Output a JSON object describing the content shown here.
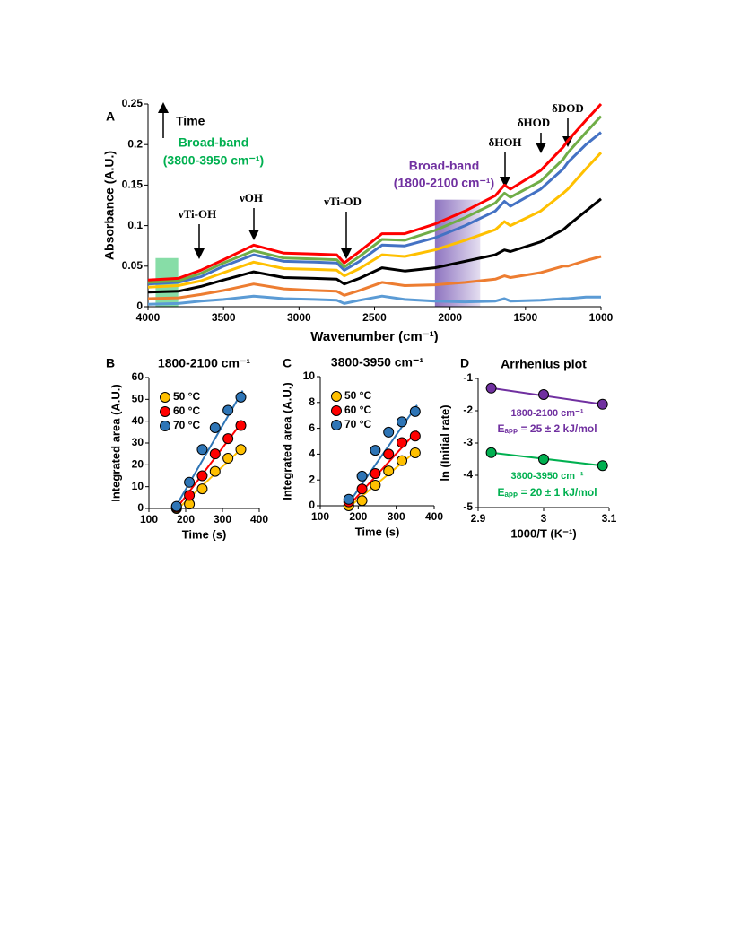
{
  "chart_data": [
    {
      "type": "line",
      "panel_label": "A",
      "xlabel": "Wavenumber (cm⁻¹)",
      "ylabel": "Absorbance (A.U.)",
      "xlim": [
        4000,
        1000
      ],
      "ylim": [
        0,
        0.25
      ],
      "xticks": [
        4000,
        3500,
        3000,
        2500,
        2000,
        1500,
        1000
      ],
      "yticks": [
        0,
        0.05,
        0.1,
        0.15,
        0.2,
        0.25
      ],
      "x": [
        4000,
        3800,
        3650,
        3500,
        3300,
        3100,
        2900,
        2750,
        2700,
        2600,
        2450,
        2300,
        2100,
        1900,
        1700,
        1640,
        1600,
        1400,
        1250,
        1220,
        1100,
        1000
      ],
      "series": [
        {
          "color": "#5b9bd5",
          "values": [
            0.003,
            0.004,
            0.007,
            0.009,
            0.013,
            0.01,
            0.009,
            0.008,
            0.004,
            0.008,
            0.013,
            0.009,
            0.007,
            0.006,
            0.007,
            0.01,
            0.007,
            0.008,
            0.01,
            0.01,
            0.012,
            0.012
          ]
        },
        {
          "color": "#ed7d31",
          "values": [
            0.01,
            0.011,
            0.015,
            0.02,
            0.028,
            0.022,
            0.02,
            0.019,
            0.014,
            0.02,
            0.03,
            0.026,
            0.027,
            0.03,
            0.034,
            0.038,
            0.036,
            0.042,
            0.05,
            0.05,
            0.057,
            0.062
          ]
        },
        {
          "color": "#000000",
          "values": [
            0.018,
            0.019,
            0.025,
            0.033,
            0.043,
            0.036,
            0.035,
            0.034,
            0.028,
            0.035,
            0.048,
            0.044,
            0.048,
            0.056,
            0.064,
            0.07,
            0.068,
            0.08,
            0.095,
            0.1,
            0.118,
            0.133
          ]
        },
        {
          "color": "#ffc000",
          "values": [
            0.024,
            0.026,
            0.032,
            0.042,
            0.055,
            0.047,
            0.046,
            0.045,
            0.038,
            0.047,
            0.064,
            0.062,
            0.07,
            0.082,
            0.095,
            0.105,
            0.1,
            0.118,
            0.14,
            0.145,
            0.17,
            0.19
          ]
        },
        {
          "color": "#4472c4",
          "values": [
            0.028,
            0.03,
            0.037,
            0.05,
            0.064,
            0.056,
            0.055,
            0.054,
            0.045,
            0.056,
            0.076,
            0.075,
            0.085,
            0.1,
            0.118,
            0.13,
            0.124,
            0.145,
            0.17,
            0.178,
            0.2,
            0.215
          ]
        },
        {
          "color": "#70ad47",
          "values": [
            0.03,
            0.032,
            0.041,
            0.054,
            0.069,
            0.06,
            0.059,
            0.058,
            0.049,
            0.062,
            0.083,
            0.082,
            0.094,
            0.11,
            0.128,
            0.14,
            0.135,
            0.155,
            0.182,
            0.19,
            0.215,
            0.235
          ]
        },
        {
          "color": "#ff0000",
          "values": [
            0.033,
            0.035,
            0.045,
            0.058,
            0.076,
            0.066,
            0.065,
            0.064,
            0.054,
            0.068,
            0.09,
            0.09,
            0.102,
            0.118,
            0.137,
            0.15,
            0.145,
            0.168,
            0.197,
            0.205,
            0.23,
            0.25
          ]
        }
      ],
      "bands": [
        {
          "x": [
            3950,
            3800
          ],
          "top": 0.06,
          "color": "#5fd28a"
        },
        {
          "x": [
            2100,
            1800
          ],
          "top": 0.132,
          "color": "#8e6fc0"
        }
      ],
      "annotations": [
        {
          "text": "Time",
          "color": "#000000"
        },
        {
          "text": "Broad-band",
          "color": "#00b050"
        },
        {
          "text": "(3800-3950 cm⁻¹)",
          "color": "#00b050"
        },
        {
          "text": "Broad-band",
          "color": "#7030a0"
        },
        {
          "text": "(1800-2100 cm⁻¹)",
          "color": "#7030a0"
        },
        {
          "text": "νTi-OH",
          "color": "#000000"
        },
        {
          "text": "νOH",
          "color": "#000000"
        },
        {
          "text": "νTi-OD",
          "color": "#000000"
        },
        {
          "text": "δHOH",
          "color": "#000000"
        },
        {
          "text": "δHOD",
          "color": "#000000"
        },
        {
          "text": "δDOD",
          "color": "#000000"
        }
      ]
    },
    {
      "type": "scatter",
      "panel_label": "B",
      "title": "1800-2100 cm⁻¹",
      "xlabel": "Time (s)",
      "ylabel": "Integrated  area (A.U.)",
      "xlim": [
        100,
        400
      ],
      "ylim": [
        0,
        60
      ],
      "xticks": [
        100,
        200,
        300,
        400
      ],
      "yticks": [
        0,
        10,
        20,
        30,
        40,
        50,
        60
      ],
      "legend": "top-left",
      "x": [
        175,
        210,
        245,
        280,
        315,
        350
      ],
      "series": [
        {
          "name": "50 °C",
          "color": "#ffc000",
          "values": [
            0,
            2,
            9,
            17,
            23,
            27
          ],
          "fit": {
            "x": [
              180,
              355
            ],
            "y": [
              0,
              28
            ]
          }
        },
        {
          "name": "60 °C",
          "color": "#ff0000",
          "values": [
            0.5,
            6,
            15,
            25,
            32,
            38
          ],
          "fit": {
            "x": [
              175,
              355
            ],
            "y": [
              0,
              40
            ]
          }
        },
        {
          "name": "70 °C",
          "color": "#2e75b6",
          "values": [
            1,
            12,
            27,
            37,
            45,
            51
          ],
          "fit": {
            "x": [
              170,
              355
            ],
            "y": [
              0,
              54
            ]
          }
        }
      ]
    },
    {
      "type": "scatter",
      "panel_label": "C",
      "title": "3800-3950 cm⁻¹",
      "xlabel": "Time (s)",
      "ylabel": "Integrated  area (A.U.)",
      "xlim": [
        100,
        400
      ],
      "ylim": [
        0,
        10
      ],
      "xticks": [
        100,
        200,
        300,
        400
      ],
      "yticks": [
        0,
        2,
        4,
        6,
        8,
        10
      ],
      "legend": "top-left",
      "x": [
        175,
        210,
        245,
        280,
        315,
        350
      ],
      "series": [
        {
          "name": "50 °C",
          "color": "#ffc000",
          "values": [
            0,
            0.4,
            1.6,
            2.7,
            3.5,
            4.1
          ],
          "fit": {
            "x": [
              180,
              355
            ],
            "y": [
              0,
              4.3
            ]
          }
        },
        {
          "name": "60 °C",
          "color": "#ff0000",
          "values": [
            0.3,
            1.3,
            2.5,
            4,
            4.9,
            5.4
          ],
          "fit": {
            "x": [
              175,
              355
            ],
            "y": [
              0,
              5.8
            ]
          }
        },
        {
          "name": "70 °C",
          "color": "#2e75b6",
          "values": [
            0.5,
            2.3,
            4.3,
            5.7,
            6.5,
            7.3
          ],
          "fit": {
            "x": [
              170,
              355
            ],
            "y": [
              0,
              7.8
            ]
          }
        }
      ]
    },
    {
      "type": "scatter",
      "panel_label": "D",
      "title": "Arrhenius plot",
      "xlabel": "1000/T (K⁻¹)",
      "ylabel": "ln (Initial rate)",
      "xlim": [
        2.9,
        3.1
      ],
      "ylim": [
        -5,
        -1
      ],
      "xticks": [
        2.9,
        3,
        3.1
      ],
      "yticks": [
        -1,
        -2,
        -3,
        -4,
        -5
      ],
      "x": [
        2.92,
        3.0,
        3.09
      ],
      "series": [
        {
          "color": "#7030a0",
          "values": [
            -1.3,
            -1.5,
            -1.8
          ],
          "fit": {
            "x": [
              2.92,
              3.09
            ],
            "y": [
              -1.3,
              -1.8
            ]
          }
        },
        {
          "color": "#00b050",
          "values": [
            -3.3,
            -3.5,
            -3.7
          ],
          "fit": {
            "x": [
              2.92,
              3.09
            ],
            "y": [
              -3.3,
              -3.7
            ]
          }
        }
      ],
      "annotations": [
        {
          "text": "1800-2100 cm⁻¹",
          "color": "#7030a0"
        },
        {
          "text": "Eₐₚₚ = 25 ± 2 kJ/mol",
          "color": "#7030a0"
        },
        {
          "text": "3800-3950 cm⁻¹",
          "color": "#00b050"
        },
        {
          "text": "Eₐₚₚ = 20 ± 1 kJ/mol",
          "color": "#00b050"
        }
      ]
    }
  ]
}
